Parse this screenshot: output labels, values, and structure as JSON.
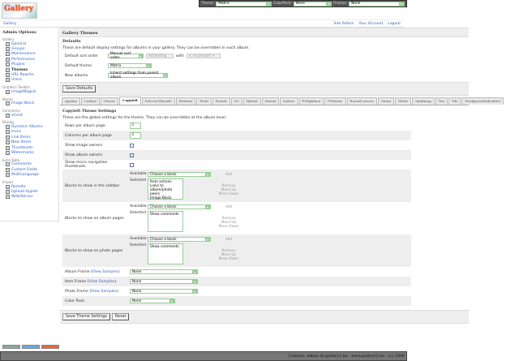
{
  "logo_text": "Gallery",
  "theme_bar": {
    "theme_label": "Theme:",
    "theme_value": "Matrix",
    "colorpack_label": "ColorPack:",
    "colorpack_value": "None",
    "frames_label": "Frames:",
    "frames_value": "None"
  },
  "breadcrumb": "Gallery",
  "top_links": [
    "Site Admin",
    "Your Account",
    "Logout"
  ],
  "sidebar": {
    "title": "Admin Options",
    "groups": [
      {
        "label": "Gallery",
        "items": [
          "General",
          "Groups",
          "Maintenance",
          "Performance",
          "Plugins",
          "Themes",
          "URL Rewrite",
          "Users"
        ]
      },
      {
        "label": "Graphics Toolkits",
        "items": [
          "ImageMagick"
        ]
      },
      {
        "label": "Blocks",
        "items": [
          "Image Block"
        ]
      },
      {
        "label": "Commerce",
        "items": [
          "eCard"
        ]
      },
      {
        "label": "Display",
        "items": [
          "Dynamic Albums",
          "Icons",
          "Link Items",
          "New Items",
          "Thumbnails",
          "Watermarks"
        ]
      },
      {
        "label": "Extra Data",
        "items": [
          "Comments",
          "Custom Fields",
          "MultiLanguage"
        ]
      },
      {
        "label": "Import",
        "items": [
          "Remote",
          "Upload Applet",
          "Web/Server"
        ]
      }
    ],
    "active": "Themes"
  },
  "main": {
    "title": "Gallery Themes",
    "defaults": {
      "heading": "Defaults",
      "description": "These are default display settings for albums in your gallery.  They can be overridden in each album.",
      "sort_label": "Default sort order",
      "sort_value": "Manual sort order",
      "sort_dir": "Ascending",
      "with_label": "with",
      "presort": "< no presort >",
      "theme_label": "Default theme",
      "theme_value": "Matrix",
      "new_label": "New albums",
      "new_value": "Inherit settings from parent album",
      "save": "Save Defaults"
    },
    "tabs": [
      "Ajaxian",
      "Carbon",
      "Classic",
      "Copyleft",
      "EclecticThreads",
      "Flexbrix",
      "Fluid",
      "PortaIt",
      "G3",
      "Hybrid",
      "Matrix",
      "Nature",
      "PGlightbox",
      "PGtheme",
      "RoundCorners",
      "Siriux",
      "Slider",
      "Splitbang",
      "Tea",
      "Tile",
      "WordpressEmbedded"
    ],
    "active_tab": "Copyleft",
    "settings": {
      "heading": "Copyleft Theme Settings",
      "description": "These are the global settings for the theme.  They can be overridden at the album level.",
      "rows_label": "Rows per album page",
      "rows_value": "3",
      "cols_label": "Columns per album page",
      "cols_value": "3",
      "image_owners_label": "Show image owners",
      "image_owners": false,
      "album_owners_label": "Show album owners",
      "album_owners": true,
      "micro_label": "Show micro navigation thumbnails",
      "micro": false,
      "available": "Available",
      "selected": "Selected",
      "choose": "Choose a block",
      "add": "Add",
      "remove": "Remove",
      "move_up": "Move Up",
      "move_down": "Move Down",
      "sidebar_blocks_label": "Blocks to show in the sidebar",
      "sidebar_blocks": [
        "Item actions",
        "Links to album/photo peers",
        "Image Block"
      ],
      "album_blocks_label": "Blocks to show on album pages",
      "album_blocks": [
        "Show comments"
      ],
      "photo_blocks_label": "Blocks to show on photo pages",
      "photo_blocks": [
        "Show comments"
      ],
      "album_frame_label": "Album Frame",
      "item_frame_label": "Item Frame",
      "photo_frame_label": "Photo Frame",
      "view_samples": "View Samples",
      "album_frame": "None",
      "item_frame": "None",
      "photo_frame": "None",
      "color_pack_label": "Color Pack",
      "color_pack": "None",
      "save": "Save Theme Settings",
      "reset": "Reset"
    }
  },
  "footer": "Contact: admin at gallery2.hu - www.gallery2.hu - (c) 2006"
}
